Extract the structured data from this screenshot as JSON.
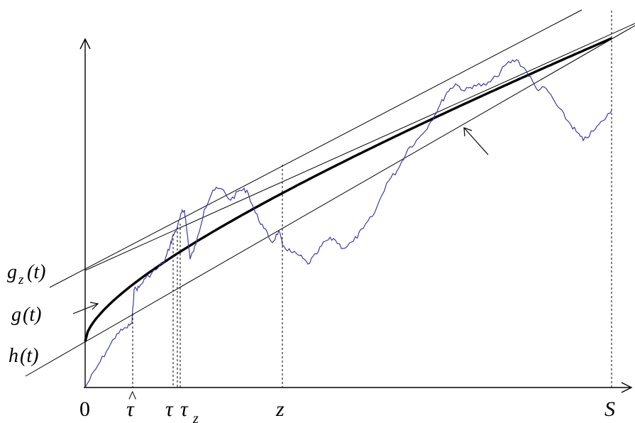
{
  "labels": {
    "origin": "0",
    "tau_hat_base": "τ",
    "tau_hat_mark": "^",
    "tau": "τ",
    "tau_z_base": "τ",
    "tau_z_sub": "z",
    "z": "z",
    "S": "S",
    "gz_base": "g",
    "gz_sub": "z",
    "gz_arg": "(t)",
    "g_base": "g",
    "g_arg": "(t)",
    "h_base": "h",
    "h_arg": "(t)"
  },
  "colors": {
    "axis": "#000000",
    "thick_curve": "#000000",
    "thin_lines": "#000000",
    "random_path": "#3a3aa8",
    "dashed": "#000000"
  },
  "icons": {
    "x_axis_arrow": "arrow-right-icon",
    "y_axis_arrow": "arrow-up-icon",
    "g_pointer": "arrow-pointer-icon",
    "h_pointer": "arrow-pointer-icon"
  }
}
